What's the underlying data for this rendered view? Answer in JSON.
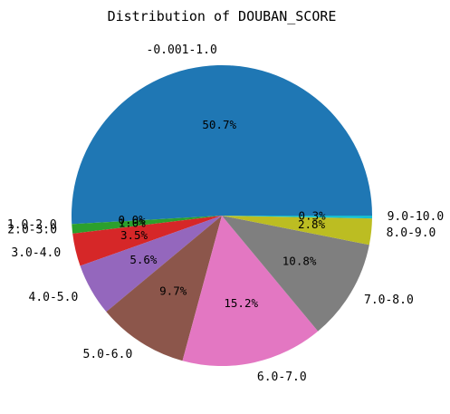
{
  "chart_data": {
    "type": "pie",
    "title": "Distribution of DOUBAN_SCORE",
    "slices": [
      {
        "label": "-0.001-1.0",
        "value": 50.7,
        "pct_label": "50.7%",
        "color": "#1f77b4"
      },
      {
        "label": "1.0-2.0",
        "value": 0.0,
        "pct_label": "0.0%",
        "color": "#ff7f0e"
      },
      {
        "label": "2.0-3.0",
        "value": 1.0,
        "pct_label": "1.0%",
        "color": "#2ca02c"
      },
      {
        "label": "3.0-4.0",
        "value": 3.5,
        "pct_label": "3.5%",
        "color": "#d62728"
      },
      {
        "label": "4.0-5.0",
        "value": 5.6,
        "pct_label": "5.6%",
        "color": "#9467bd"
      },
      {
        "label": "5.0-6.0",
        "value": 9.7,
        "pct_label": "9.7%",
        "color": "#8c564b"
      },
      {
        "label": "6.0-7.0",
        "value": 15.2,
        "pct_label": "15.2%",
        "color": "#e377c2"
      },
      {
        "label": "7.0-8.0",
        "value": 10.8,
        "pct_label": "10.8%",
        "color": "#7f7f7f"
      },
      {
        "label": "8.0-9.0",
        "value": 2.8,
        "pct_label": "2.8%",
        "color": "#bcbd22"
      },
      {
        "label": "9.0-10.0",
        "value": 0.3,
        "pct_label": "0.3%",
        "color": "#17becf"
      }
    ],
    "start_angle": "3 o'clock",
    "direction": "counterclockwise",
    "legend": "none"
  }
}
